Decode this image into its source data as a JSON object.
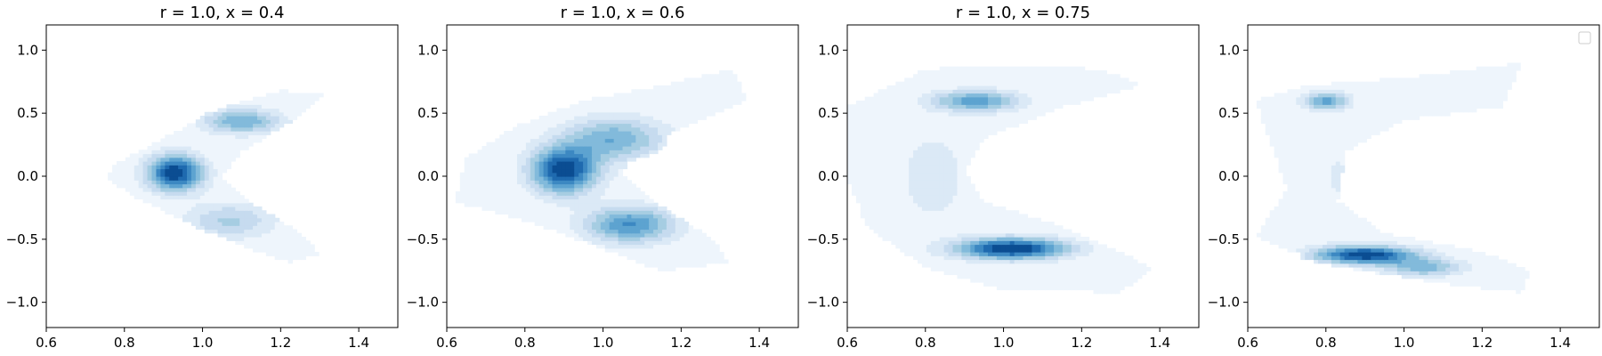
{
  "figure": {
    "background": "#ffffff",
    "axes_color": "#000000"
  },
  "colormap": [
    "#eef5fc",
    "#dbe9f6",
    "#c6dbef",
    "#a6cde2",
    "#82badb",
    "#5da3d0",
    "#3c88c2",
    "#1f6aaf",
    "#0b4d92"
  ],
  "chart_data": [
    {
      "type": "kde-contour",
      "title": "r = 1.0, x = 0.4",
      "xlabel": "",
      "ylabel": "",
      "xlim": [
        0.6,
        1.5
      ],
      "ylim": [
        -1.2,
        1.2
      ],
      "xticks": [
        0.6,
        0.8,
        1.0,
        1.2,
        1.4
      ],
      "xtick_labels": [
        "0.6",
        "0.8",
        "1.0",
        "1.2",
        "1.4"
      ],
      "yticks": [
        -1.0,
        -0.5,
        0.0,
        0.5,
        1.0
      ],
      "ytick_labels": [
        "−1.0",
        "−0.5",
        "0.0",
        "0.5",
        "1.0"
      ],
      "legend": false,
      "density_modes": [
        {
          "x": 0.93,
          "y": 0.03,
          "weight": 1.0,
          "sx": 0.05,
          "sy": 0.1
        },
        {
          "x": 1.1,
          "y": 0.44,
          "weight": 0.55,
          "sx": 0.07,
          "sy": 0.07
        },
        {
          "x": 1.07,
          "y": -0.35,
          "weight": 0.35,
          "sx": 0.08,
          "sy": 0.1
        }
      ],
      "support": [
        [
          0.78,
          0.1
        ],
        [
          0.9,
          0.3
        ],
        [
          1.05,
          0.55
        ],
        [
          1.2,
          0.68
        ],
        [
          1.31,
          0.65
        ],
        [
          1.22,
          0.42
        ],
        [
          1.1,
          0.2
        ],
        [
          1.05,
          0.0
        ],
        [
          1.12,
          -0.2
        ],
        [
          1.25,
          -0.45
        ],
        [
          1.3,
          -0.62
        ],
        [
          1.22,
          -0.68
        ],
        [
          1.1,
          -0.55
        ],
        [
          0.95,
          -0.35
        ],
        [
          0.82,
          -0.15
        ],
        [
          0.75,
          0.0
        ]
      ]
    },
    {
      "type": "kde-contour",
      "title": "r = 1.0, x = 0.6",
      "xlabel": "",
      "ylabel": "",
      "xlim": [
        0.6,
        1.5
      ],
      "ylim": [
        -1.2,
        1.2
      ],
      "xticks": [
        0.6,
        0.8,
        1.0,
        1.2,
        1.4
      ],
      "xtick_labels": [
        "0.6",
        "0.8",
        "1.0",
        "1.2",
        "1.4"
      ],
      "yticks": [
        -1.0,
        -0.5,
        0.0,
        0.5,
        1.0
      ],
      "ytick_labels": [
        "−1.0",
        "−0.5",
        "0.0",
        "0.5",
        "1.0"
      ],
      "legend": false,
      "density_modes": [
        {
          "x": 0.9,
          "y": 0.05,
          "weight": 1.0,
          "sx": 0.06,
          "sy": 0.13
        },
        {
          "x": 1.03,
          "y": 0.3,
          "weight": 0.55,
          "sx": 0.09,
          "sy": 0.12
        },
        {
          "x": 1.07,
          "y": -0.38,
          "weight": 0.7,
          "sx": 0.08,
          "sy": 0.1
        }
      ],
      "support": [
        [
          0.65,
          0.15
        ],
        [
          0.78,
          0.4
        ],
        [
          0.95,
          0.6
        ],
        [
          1.15,
          0.72
        ],
        [
          1.33,
          0.85
        ],
        [
          1.37,
          0.6
        ],
        [
          1.22,
          0.4
        ],
        [
          1.07,
          0.2
        ],
        [
          1.05,
          0.0
        ],
        [
          1.13,
          -0.2
        ],
        [
          1.28,
          -0.5
        ],
        [
          1.32,
          -0.68
        ],
        [
          1.15,
          -0.75
        ],
        [
          0.98,
          -0.55
        ],
        [
          0.8,
          -0.35
        ],
        [
          0.62,
          -0.2
        ]
      ]
    },
    {
      "type": "kde-contour",
      "title": "r = 1.0, x = 0.75",
      "xlabel": "",
      "ylabel": "",
      "xlim": [
        0.6,
        1.5
      ],
      "ylim": [
        -1.2,
        1.2
      ],
      "xticks": [
        0.6,
        0.8,
        1.0,
        1.2,
        1.4
      ],
      "xtick_labels": [
        "0.6",
        "0.8",
        "1.0",
        "1.2",
        "1.4"
      ],
      "yticks": [
        -1.0,
        -0.5,
        0.0,
        0.5,
        1.0
      ],
      "ytick_labels": [
        "−1.0",
        "−0.5",
        "0.0",
        "0.5",
        "1.0"
      ],
      "legend": false,
      "density_modes": [
        {
          "x": 0.93,
          "y": 0.6,
          "weight": 0.6,
          "sx": 0.08,
          "sy": 0.06
        },
        {
          "x": 1.02,
          "y": -0.57,
          "weight": 1.0,
          "sx": 0.1,
          "sy": 0.06
        },
        {
          "x": 0.82,
          "y": 0.0,
          "weight": 0.2,
          "sx": 0.06,
          "sy": 0.25
        }
      ],
      "support": [
        [
          0.6,
          0.55
        ],
        [
          0.8,
          0.85
        ],
        [
          1.0,
          0.88
        ],
        [
          1.25,
          0.85
        ],
        [
          1.35,
          0.72
        ],
        [
          1.15,
          0.55
        ],
        [
          0.95,
          0.3
        ],
        [
          0.9,
          0.05
        ],
        [
          0.95,
          -0.2
        ],
        [
          1.15,
          -0.4
        ],
        [
          1.38,
          -0.72
        ],
        [
          1.3,
          -0.92
        ],
        [
          1.0,
          -0.9
        ],
        [
          0.8,
          -0.72
        ],
        [
          0.65,
          -0.4
        ],
        [
          0.6,
          0.0
        ]
      ]
    },
    {
      "type": "kde-contour",
      "title": "",
      "xlabel": "",
      "ylabel": "",
      "xlim": [
        0.6,
        1.5
      ],
      "ylim": [
        -1.2,
        1.2
      ],
      "xticks": [
        0.6,
        0.8,
        1.0,
        1.2,
        1.4
      ],
      "xtick_labels": [
        "0.6",
        "0.8",
        "1.0",
        "1.2",
        "1.4"
      ],
      "yticks": [
        -1.0,
        -0.5,
        0.0,
        0.5,
        1.0
      ],
      "ytick_labels": [
        "−1.0",
        "−0.5",
        "0.0",
        "0.5",
        "1.0"
      ],
      "legend": true,
      "legend_loc": "upper right",
      "density_modes": [
        {
          "x": 0.8,
          "y": 0.6,
          "weight": 0.6,
          "sx": 0.04,
          "sy": 0.05
        },
        {
          "x": 0.9,
          "y": -0.62,
          "weight": 1.0,
          "sx": 0.09,
          "sy": 0.05
        },
        {
          "x": 1.05,
          "y": -0.72,
          "weight": 0.5,
          "sx": 0.07,
          "sy": 0.05
        },
        {
          "x": 0.83,
          "y": 0.0,
          "weight": 0.12,
          "sx": 0.05,
          "sy": 0.3
        }
      ],
      "support": [
        [
          0.62,
          0.6
        ],
        [
          0.75,
          0.72
        ],
        [
          1.0,
          0.78
        ],
        [
          1.3,
          0.9
        ],
        [
          1.25,
          0.55
        ],
        [
          1.0,
          0.45
        ],
        [
          0.85,
          0.2
        ],
        [
          0.83,
          -0.2
        ],
        [
          0.95,
          -0.45
        ],
        [
          1.2,
          -0.6
        ],
        [
          1.32,
          -0.75
        ],
        [
          1.3,
          -0.92
        ],
        [
          1.1,
          -0.85
        ],
        [
          0.8,
          -0.7
        ],
        [
          0.62,
          -0.48
        ],
        [
          0.7,
          -0.1
        ]
      ]
    }
  ]
}
